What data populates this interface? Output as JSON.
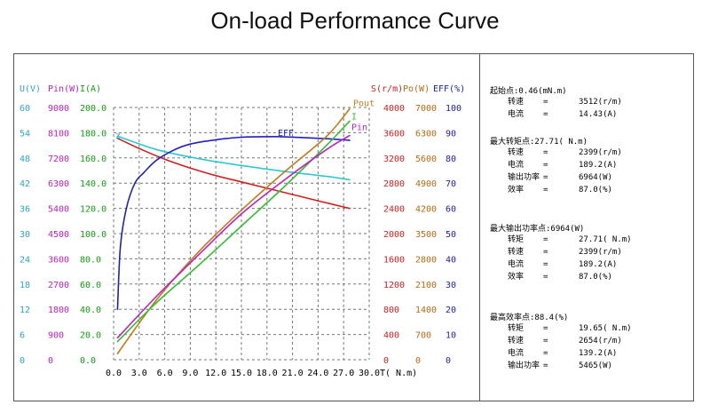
{
  "title": "On-load Performance Curve",
  "chart_data": {
    "type": "line",
    "title": "On-load Performance Curve",
    "xlabel": "T( N.m)",
    "x_ticks": [
      "0.0",
      "3.0",
      "6.0",
      "9.0",
      "12.0",
      "15.0",
      "18.0",
      "21.0",
      "24.0",
      "27.0",
      "30.0"
    ],
    "xlim": [
      0,
      30
    ],
    "left_axes": [
      {
        "label": "U(V)",
        "color": "#2aa6c8",
        "ticks": [
          "0",
          "6",
          "12",
          "18",
          "24",
          "30",
          "36",
          "42",
          "48",
          "54",
          "60"
        ],
        "range": [
          0,
          60
        ]
      },
      {
        "label": "Pin(W)",
        "color": "#c020c0",
        "ticks": [
          "0",
          "900",
          "1800",
          "2700",
          "3600",
          "4500",
          "5400",
          "6300",
          "7200",
          "8100",
          "9000"
        ],
        "range": [
          0,
          9000
        ]
      },
      {
        "label": "I(A)",
        "color": "#10a010",
        "ticks": [
          "0.0",
          "20.0",
          "40.0",
          "60.0",
          "80.0",
          "100.0",
          "120.0",
          "140.0",
          "160.0",
          "180.0",
          "200.0"
        ],
        "range": [
          0,
          200
        ]
      }
    ],
    "right_axes": [
      {
        "label": "S(r/m)",
        "color": "#d02020",
        "ticks": [
          "0",
          "400",
          "800",
          "1200",
          "1600",
          "2000",
          "2400",
          "2800",
          "3200",
          "3600",
          "4000"
        ],
        "range": [
          0,
          4000
        ]
      },
      {
        "label": "Po(W)",
        "color": "#b86a10",
        "ticks": [
          "0",
          "700",
          "1400",
          "2100",
          "2800",
          "3500",
          "4200",
          "4900",
          "5600",
          "6300",
          "7000"
        ],
        "range": [
          0,
          7000
        ]
      },
      {
        "label": "EFF(%)",
        "color": "#2020b0",
        "ticks": [
          "0",
          "10",
          "20",
          "30",
          "40",
          "50",
          "60",
          "70",
          "80",
          "90",
          "100"
        ],
        "range": [
          0,
          100
        ]
      }
    ],
    "series": [
      {
        "name": "U",
        "label": "",
        "color": "#2ec8d0",
        "axis": "U(V)",
        "x": [
          0.46,
          5,
          10,
          15,
          20,
          25,
          27.71
        ],
        "y": [
          53.2,
          50.0,
          47.8,
          46.2,
          44.8,
          43.6,
          42.8
        ]
      },
      {
        "name": "S",
        "label": "",
        "color": "#d02020",
        "axis": "S(r/m)",
        "x": [
          0.46,
          3,
          6,
          9,
          12,
          15,
          18,
          21,
          24,
          27.71
        ],
        "y": [
          3512,
          3350,
          3180,
          3040,
          2920,
          2820,
          2720,
          2620,
          2520,
          2399
        ]
      },
      {
        "name": "EFF",
        "label": "EFF",
        "color": "#2020c0",
        "axis": "EFF(%)",
        "x": [
          0.46,
          0.8,
          1.5,
          2.5,
          3.5,
          5,
          7,
          9,
          12,
          15,
          18,
          19.65,
          22,
          25,
          27.71
        ],
        "y": [
          20,
          45,
          60,
          70,
          74,
          79,
          83,
          85.5,
          87.2,
          88.2,
          88.4,
          88.4,
          88.1,
          87.6,
          87.0
        ]
      },
      {
        "name": "Pout",
        "label": "Pout",
        "color": "#c87a18",
        "axis": "Po(W)",
        "x": [
          0.46,
          5,
          10,
          15,
          20,
          25,
          27.71
        ],
        "y": [
          170,
          1650,
          3000,
          4150,
          5200,
          6200,
          6964
        ]
      },
      {
        "name": "I",
        "label": "I",
        "color": "#30c030",
        "axis": "I(A)",
        "x": [
          0.46,
          5,
          10,
          15,
          20,
          25,
          27.71
        ],
        "y": [
          14.43,
          45,
          75,
          106,
          137,
          170,
          189.2
        ]
      },
      {
        "name": "Pin",
        "label": "Pin",
        "color": "#c020c0",
        "axis": "Pin(W)",
        "x": [
          0.46,
          5,
          10,
          15,
          20,
          25,
          27.71
        ],
        "y": [
          780,
          2250,
          3750,
          5200,
          6400,
          7500,
          8000
        ]
      }
    ]
  },
  "info": {
    "sections": [
      {
        "head": "起始点:0.46(mN.m)",
        "rows": [
          {
            "k": "转速",
            "eq": "=",
            "v": "3512(r/m)"
          },
          {
            "k": "电流",
            "eq": "=",
            "v": "14.43(A)"
          }
        ]
      },
      {
        "head": "最大转矩点:27.71( N.m)",
        "rows": [
          {
            "k": "转速",
            "eq": "=",
            "v": "2399(r/m)"
          },
          {
            "k": "电流",
            "eq": "=",
            "v": "189.2(A)"
          },
          {
            "k": "输出功率",
            "eq": "=",
            "v": "6964(W)"
          },
          {
            "k": "效率",
            "eq": "=",
            "v": "87.0(%)"
          }
        ]
      },
      {
        "head": "最大输出功率点:6964(W)",
        "rows": [
          {
            "k": "转矩",
            "eq": "=",
            "v": "27.71( N.m)"
          },
          {
            "k": "转速",
            "eq": "=",
            "v": "2399(r/m)"
          },
          {
            "k": "电流",
            "eq": "=",
            "v": "189.2(A)"
          },
          {
            "k": "效率",
            "eq": "=",
            "v": "87.0(%)"
          }
        ]
      },
      {
        "head": "最高效率点:88.4(%)",
        "rows": [
          {
            "k": "转矩",
            "eq": "=",
            "v": "19.65( N.m)"
          },
          {
            "k": "转速",
            "eq": "=",
            "v": "2654(r/m)"
          },
          {
            "k": "电流",
            "eq": "=",
            "v": "139.2(A)"
          },
          {
            "k": "输出功率",
            "eq": "=",
            "v": "5465(W)"
          }
        ]
      }
    ]
  }
}
